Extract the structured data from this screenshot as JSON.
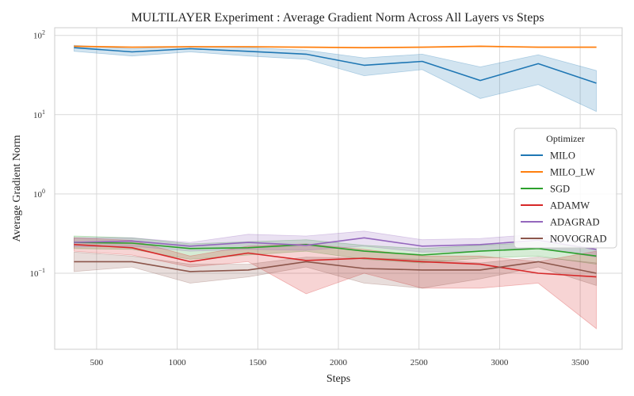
{
  "chart_data": {
    "type": "line",
    "title": "MULTILAYER Experiment : Average Gradient Norm Across All Layers vs Steps",
    "xlabel": "Steps",
    "ylabel": "Average Gradient Norm",
    "yscale": "log",
    "xlim": [
      240,
      3760
    ],
    "ylim": [
      0.011,
      125
    ],
    "x_ticks": [
      500,
      1000,
      1500,
      2000,
      2500,
      3000,
      3500
    ],
    "y_ticks": [
      {
        "value": 100,
        "base": "10",
        "exp": "2"
      },
      {
        "value": 10,
        "base": "10",
        "exp": "1"
      },
      {
        "value": 1,
        "base": "10",
        "exp": "0"
      },
      {
        "value": 0.1,
        "base": "10",
        "exp": "−1"
      }
    ],
    "grid": true,
    "legend": {
      "title": "Optimizer",
      "placement": "center-right"
    },
    "x": [
      360,
      720,
      1080,
      1440,
      1800,
      2160,
      2520,
      2880,
      3240,
      3600
    ],
    "series": [
      {
        "name": "MILO",
        "color": "#1f77b4",
        "values": [
          70,
          62,
          68,
          63,
          58,
          42,
          47,
          27,
          44,
          25
        ],
        "lower": [
          63,
          55,
          62,
          55,
          50,
          31,
          37,
          16,
          24,
          11
        ],
        "upper": [
          75,
          68,
          73,
          70,
          65,
          52,
          58,
          40,
          57,
          36
        ]
      },
      {
        "name": "MILO_LW",
        "color": "#ff7f0e",
        "values": [
          73,
          71,
          72,
          72,
          71,
          70,
          71,
          73,
          71,
          71
        ],
        "lower": [
          72,
          70,
          71,
          71,
          70,
          69,
          70,
          72,
          70,
          70
        ],
        "upper": [
          74,
          72,
          73,
          73,
          72,
          71,
          72,
          74,
          72,
          72
        ]
      },
      {
        "name": "SGD",
        "color": "#2ca02c",
        "values": [
          0.245,
          0.24,
          0.205,
          0.21,
          0.23,
          0.19,
          0.17,
          0.19,
          0.205,
          0.165
        ],
        "lower": [
          0.205,
          0.2,
          0.15,
          0.17,
          0.19,
          0.15,
          0.135,
          0.155,
          0.165,
          0.13
        ],
        "upper": [
          0.295,
          0.28,
          0.235,
          0.25,
          0.265,
          0.225,
          0.205,
          0.225,
          0.245,
          0.2
        ]
      },
      {
        "name": "ADAMW",
        "color": "#d62728",
        "values": [
          0.23,
          0.21,
          0.14,
          0.18,
          0.145,
          0.155,
          0.14,
          0.13,
          0.1,
          0.09
        ],
        "lower": [
          0.19,
          0.17,
          0.12,
          0.14,
          0.055,
          0.1,
          0.065,
          0.065,
          0.075,
          0.02
        ],
        "upper": [
          0.28,
          0.26,
          0.165,
          0.22,
          0.235,
          0.2,
          0.165,
          0.165,
          0.14,
          0.19
        ]
      },
      {
        "name": "ADAGRAD",
        "color": "#9467bd",
        "values": [
          0.245,
          0.255,
          0.22,
          0.245,
          0.225,
          0.28,
          0.22,
          0.23,
          0.26,
          0.2
        ],
        "lower": [
          0.215,
          0.22,
          0.19,
          0.2,
          0.195,
          0.22,
          0.185,
          0.19,
          0.21,
          0.16
        ],
        "upper": [
          0.28,
          0.28,
          0.245,
          0.31,
          0.295,
          0.34,
          0.265,
          0.275,
          0.31,
          0.24
        ]
      },
      {
        "name": "NOVOGRAD",
        "color": "#8c564b",
        "values": [
          0.14,
          0.14,
          0.105,
          0.11,
          0.14,
          0.115,
          0.11,
          0.11,
          0.14,
          0.1
        ],
        "lower": [
          0.105,
          0.12,
          0.075,
          0.09,
          0.12,
          0.075,
          0.065,
          0.085,
          0.12,
          0.07
        ],
        "upper": [
          0.185,
          0.165,
          0.13,
          0.13,
          0.16,
          0.155,
          0.15,
          0.135,
          0.16,
          0.135
        ]
      }
    ]
  }
}
